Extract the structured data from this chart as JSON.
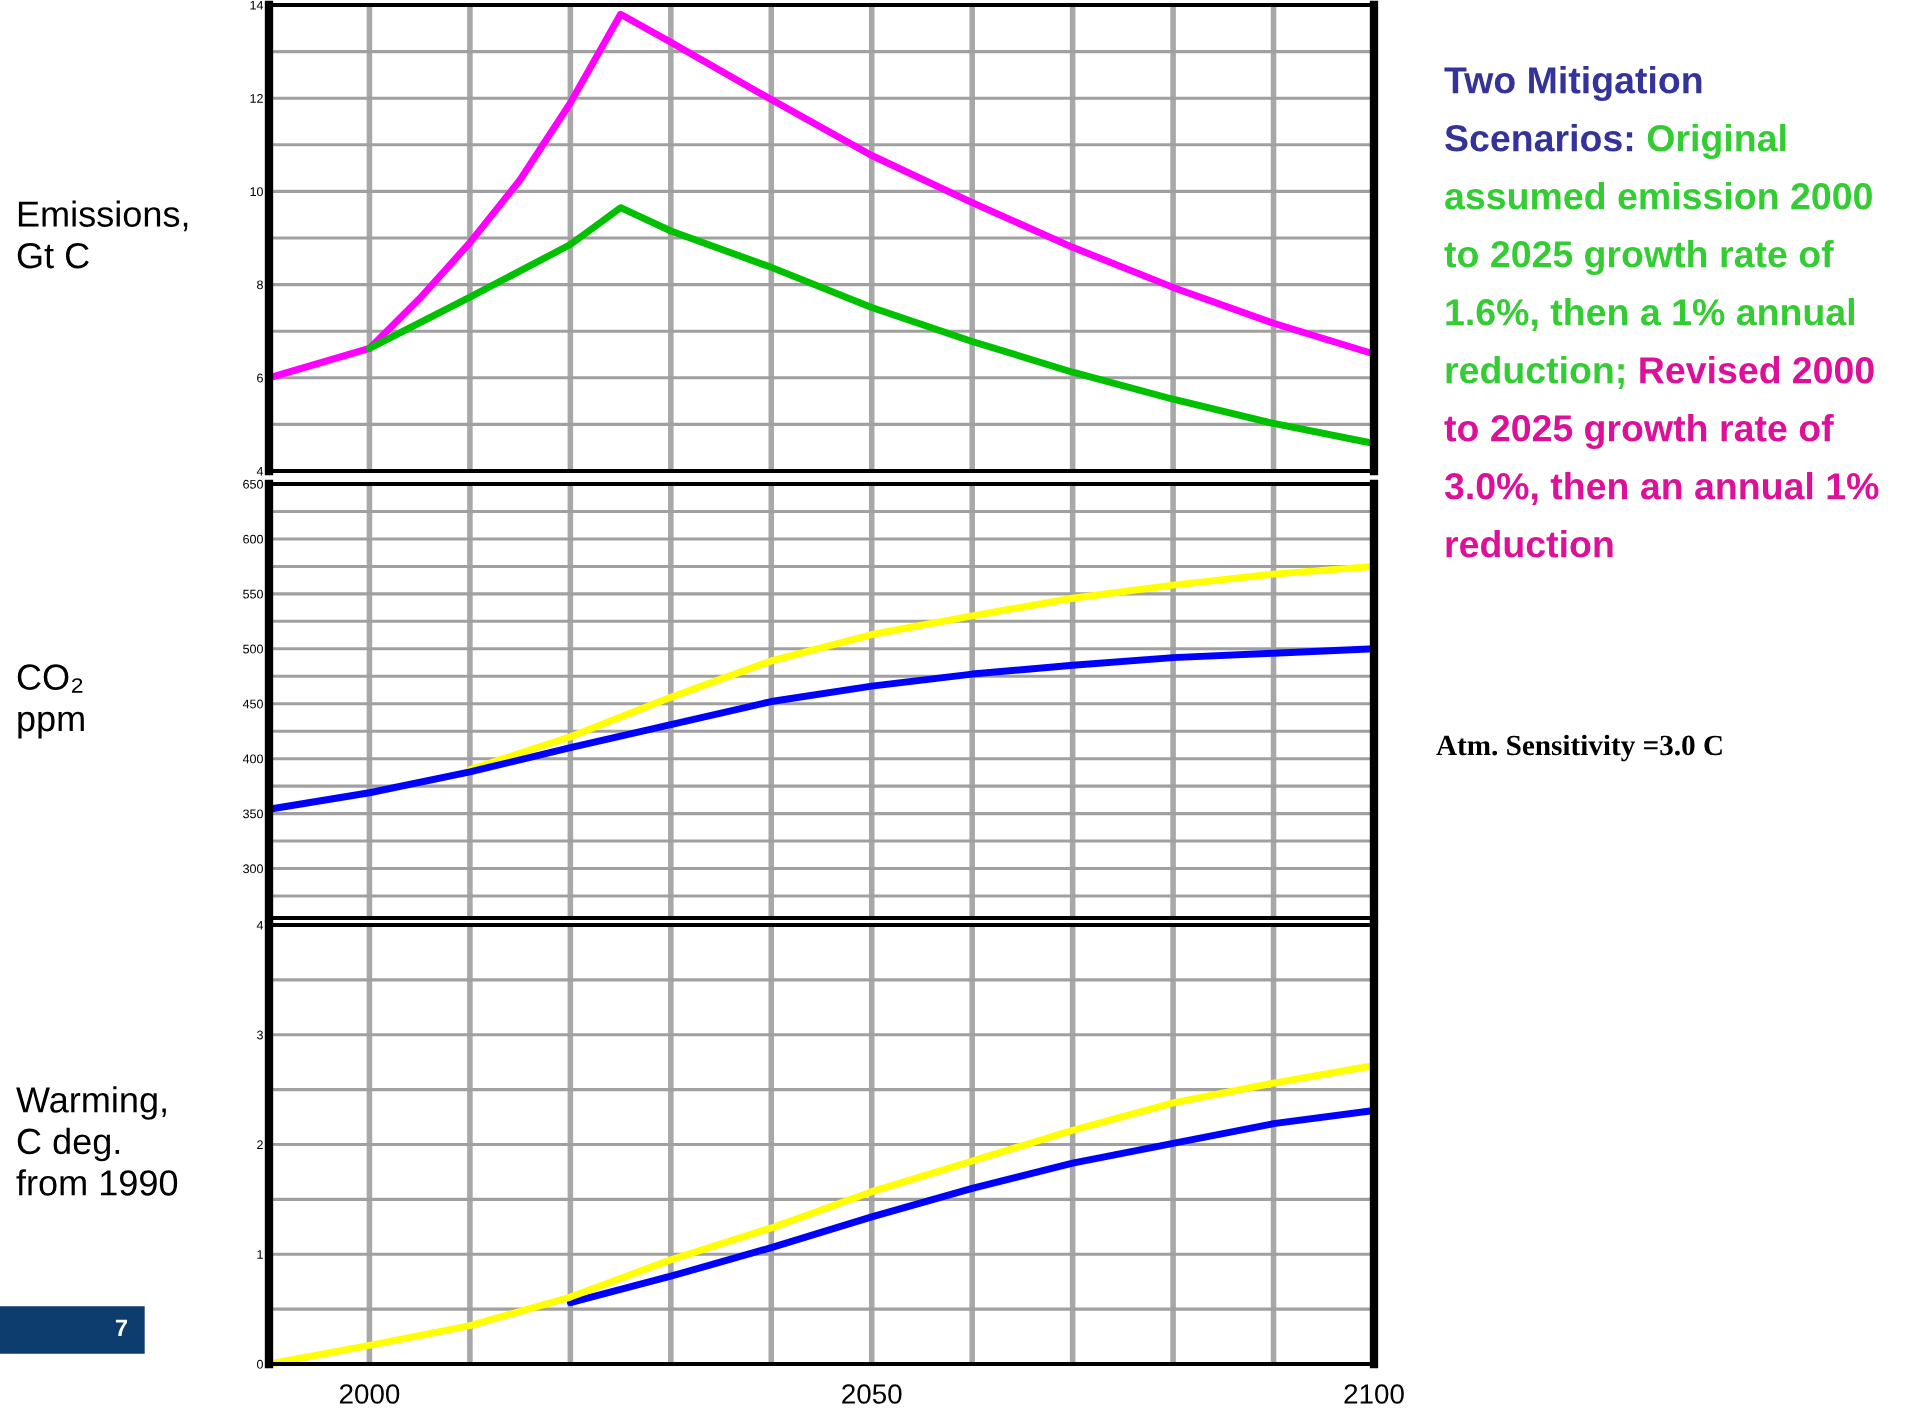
{
  "chart_data": [
    {
      "type": "line",
      "ylabel": "Emissions,\nGt C",
      "xlim": [
        1990,
        2100
      ],
      "ylim": [
        4,
        14
      ],
      "xticks": [
        {
          "value": 2000,
          "label": null
        },
        {
          "value": 2010,
          "label": null
        },
        {
          "value": 2020,
          "label": null
        },
        {
          "value": 2030,
          "label": null
        },
        {
          "value": 2040,
          "label": null
        },
        {
          "value": 2050,
          "label": null
        },
        {
          "value": 2060,
          "label": null
        },
        {
          "value": 2070,
          "label": null
        },
        {
          "value": 2080,
          "label": null
        },
        {
          "value": 2090,
          "label": null
        },
        {
          "value": 2100,
          "label": null
        }
      ],
      "yticks": [
        4,
        {
          "value": 5,
          "label": null
        },
        6,
        {
          "value": 7,
          "label": null
        },
        8,
        {
          "value": 9,
          "label": null
        },
        10,
        {
          "value": 11,
          "label": null
        },
        12,
        {
          "value": 13,
          "label": null
        },
        14
      ],
      "tick_labels": "y",
      "grid": true,
      "series": [
        {
          "color": "#ff00ff",
          "x": [
            1990,
            2000,
            2005,
            2010,
            2015,
            2020,
            2025,
            2030,
            2040,
            2050,
            2060,
            2070,
            2080,
            2090,
            2100
          ],
          "values": [
            6.0,
            6.63,
            7.7,
            8.9,
            10.25,
            11.9,
            13.8,
            13.2,
            11.97,
            10.77,
            9.76,
            8.8,
            7.94,
            7.17,
            6.51
          ]
        },
        {
          "color": "#00c000",
          "x": [
            2000,
            2010,
            2020,
            2025,
            2030,
            2040,
            2050,
            2060,
            2070,
            2080,
            2090,
            2100
          ],
          "values": [
            6.63,
            7.73,
            8.86,
            9.65,
            9.15,
            8.37,
            7.51,
            6.78,
            6.12,
            5.54,
            5.02,
            4.59
          ]
        }
      ],
      "annotations": [
        "Two Mitigation Scenarios:",
        "Original assumed emission 2000 to 2025 growth rate of 1.6%, then a 1% annual reduction;",
        "Revised 2000 to 2025 growth rate of 3.0%, then an annual 1% reduction",
        "Atm. Sensitivity =3.0 C",
        "7"
      ]
    },
    {
      "type": "line",
      "ylabel": "CO₂\nppm",
      "xlim": [
        1990,
        2100
      ],
      "ylim": [
        255,
        650
      ],
      "xticks": [
        {
          "value": 2000,
          "label": null
        },
        {
          "value": 2010,
          "label": null
        },
        {
          "value": 2020,
          "label": null
        },
        {
          "value": 2030,
          "label": null
        },
        {
          "value": 2040,
          "label": null
        },
        {
          "value": 2050,
          "label": null
        },
        {
          "value": 2060,
          "label": null
        },
        {
          "value": 2070,
          "label": null
        },
        {
          "value": 2080,
          "label": null
        },
        {
          "value": 2090,
          "label": null
        },
        {
          "value": 2100,
          "label": null
        }
      ],
      "yticks": [
        {
          "value": 275,
          "label": null
        },
        300,
        {
          "value": 325,
          "label": null
        },
        350,
        {
          "value": 375,
          "label": null
        },
        400,
        {
          "value": 425,
          "label": null
        },
        450,
        {
          "value": 475,
          "label": null
        },
        500,
        {
          "value": 525,
          "label": null
        },
        550,
        {
          "value": 575,
          "label": null
        },
        600,
        {
          "value": 625,
          "label": null
        },
        650
      ],
      "tick_labels": "y",
      "grid": true,
      "x": [
        1990,
        2000,
        2010,
        2020,
        2030,
        2040,
        2050,
        2060,
        2070,
        2080,
        2090,
        2100
      ],
      "series": [
        {
          "color": "#ffff00",
          "values": [
            null,
            null,
            390,
            420,
            456,
            489,
            513,
            530,
            546,
            558,
            568,
            575
          ]
        },
        {
          "color": "#0000ff",
          "values": [
            354,
            369,
            388,
            410,
            431,
            452,
            466,
            477,
            485,
            492,
            496,
            500
          ]
        }
      ]
    },
    {
      "type": "line",
      "ylabel": "Warming,\nC deg.\nfrom 1990",
      "xlim": [
        1990,
        2100
      ],
      "ylim": [
        0,
        4
      ],
      "xticks": [
        2000,
        {
          "value": 2010,
          "label": null
        },
        {
          "value": 2020,
          "label": null
        },
        {
          "value": 2030,
          "label": null
        },
        {
          "value": 2040,
          "label": null
        },
        2050,
        {
          "value": 2060,
          "label": null
        },
        {
          "value": 2070,
          "label": null
        },
        {
          "value": 2080,
          "label": null
        },
        {
          "value": 2090,
          "label": null
        },
        2100
      ],
      "yticks": [
        0,
        {
          "value": 0.5,
          "label": null
        },
        1,
        {
          "value": 1.5,
          "label": null
        },
        2,
        {
          "value": 2.5,
          "label": null
        },
        3,
        {
          "value": 3.5,
          "label": null
        },
        4
      ],
      "grid": true,
      "x": [
        1990,
        2000,
        2010,
        2020,
        2030,
        2040,
        2050,
        2060,
        2070,
        2080,
        2090,
        2100
      ],
      "series": [
        {
          "color": "#0000ff",
          "values": [
            null,
            null,
            null,
            0.56,
            0.8,
            1.06,
            1.34,
            1.6,
            1.83,
            2.01,
            2.19,
            2.31
          ]
        },
        {
          "color": "#ffff00",
          "values": [
            0,
            0.17,
            0.35,
            0.61,
            0.95,
            1.24,
            1.57,
            1.85,
            2.13,
            2.38,
            2.56,
            2.72
          ]
        }
      ]
    }
  ]
}
